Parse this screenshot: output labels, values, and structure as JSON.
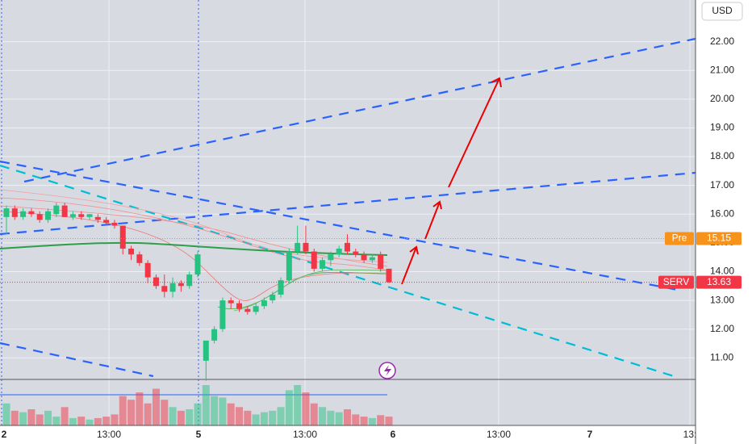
{
  "chart_data": {
    "type": "candlestick",
    "currency": "USD",
    "x_labels": [
      "2",
      "13:00",
      "5",
      "13:00",
      "6",
      "13:00",
      "7",
      "13:"
    ],
    "ylim": [
      10.25,
      23.45
    ],
    "yticks": [
      {
        "value": 11,
        "label": "11.00"
      },
      {
        "value": 12,
        "label": "12.00"
      },
      {
        "value": 13,
        "label": "13.00"
      },
      {
        "value": 14,
        "label": "14.00"
      },
      {
        "value": 15,
        "label": "15.00"
      },
      {
        "value": 16,
        "label": "16.00"
      },
      {
        "value": 17,
        "label": "17.00"
      },
      {
        "value": 18,
        "label": "18.00"
      },
      {
        "value": 19,
        "label": "19.00"
      },
      {
        "value": 20,
        "label": "20.00"
      },
      {
        "value": 21,
        "label": "21.00"
      },
      {
        "value": 22,
        "label": "22.00"
      }
    ],
    "grid": true,
    "up_color": "#26c281",
    "down_color": "#f23645",
    "open": [
      15.9,
      16.2,
      15.9,
      16.1,
      16.0,
      15.8,
      16.0,
      16.3,
      15.9,
      16.0,
      15.9,
      15.9,
      15.8,
      15.7,
      15.6,
      14.8,
      14.6,
      14.3,
      13.8,
      13.5,
      13.3,
      13.6,
      13.5,
      13.9,
      10.9,
      11.6,
      12.0,
      13.0,
      12.9,
      12.7,
      12.6,
      12.8,
      13.0,
      13.2,
      13.7,
      14.7,
      15.0,
      14.7,
      14.1,
      14.4,
      14.6,
      15.0,
      14.7,
      14.6,
      14.4,
      14.6,
      14.1
    ],
    "high": [
      16.3,
      16.3,
      16.2,
      16.2,
      16.1,
      16.2,
      16.4,
      16.4,
      16.1,
      16.1,
      16.0,
      16.0,
      15.9,
      15.8,
      15.6,
      14.9,
      14.7,
      14.4,
      13.9,
      13.9,
      13.8,
      13.7,
      14.0,
      14.7,
      11.6,
      12.1,
      13.1,
      13.1,
      13.0,
      12.8,
      12.9,
      13.1,
      13.3,
      13.8,
      14.8,
      15.6,
      15.6,
      14.8,
      14.5,
      14.7,
      14.9,
      15.3,
      14.8,
      14.7,
      14.6,
      14.7,
      14.1
    ],
    "low": [
      15.3,
      15.8,
      15.8,
      15.9,
      15.7,
      15.7,
      15.9,
      15.9,
      15.8,
      15.8,
      15.8,
      15.7,
      15.6,
      15.5,
      14.6,
      14.4,
      14.2,
      13.6,
      13.4,
      13.1,
      13.1,
      13.3,
      13.4,
      13.8,
      10.2,
      11.5,
      11.9,
      12.7,
      12.6,
      12.5,
      12.5,
      12.7,
      12.9,
      13.1,
      13.6,
      14.6,
      14.6,
      14.0,
      14.0,
      14.2,
      14.5,
      14.6,
      14.5,
      14.3,
      14.3,
      14.0,
      13.6
    ],
    "close": [
      16.2,
      15.9,
      16.1,
      16.0,
      15.8,
      16.1,
      16.3,
      15.9,
      16.0,
      15.9,
      16.0,
      15.8,
      15.7,
      15.6,
      14.8,
      14.6,
      14.3,
      13.8,
      13.5,
      13.3,
      13.6,
      13.5,
      13.9,
      14.6,
      11.6,
      12.0,
      13.0,
      12.9,
      12.7,
      12.6,
      12.8,
      13.0,
      13.2,
      13.7,
      14.7,
      15.0,
      14.7,
      14.1,
      14.4,
      14.6,
      14.8,
      14.7,
      14.6,
      14.4,
      14.5,
      14.1,
      13.63
    ],
    "volume": [
      30,
      20,
      18,
      22,
      15,
      20,
      12,
      25,
      10,
      12,
      8,
      10,
      12,
      15,
      40,
      35,
      45,
      30,
      50,
      35,
      25,
      20,
      22,
      30,
      55,
      40,
      38,
      30,
      25,
      20,
      15,
      18,
      20,
      25,
      48,
      55,
      45,
      30,
      25,
      20,
      18,
      22,
      15,
      12,
      10,
      14,
      12
    ],
    "price_labels": [
      {
        "name": "Pre",
        "value": 15.15,
        "color": "#f7931a"
      },
      {
        "name": "SERV",
        "value": 13.63,
        "color": "#f23645"
      }
    ]
  }
}
